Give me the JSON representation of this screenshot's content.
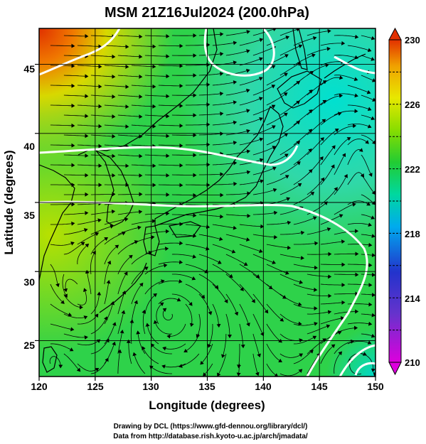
{
  "title": "MSM 21Z16Jul2024 (200.0hPa)",
  "axes": {
    "xlabel": "Longitude (degrees)",
    "ylabel": "Latitude  (degrees)",
    "x_ticks": [
      "120",
      "125",
      "130",
      "135",
      "140",
      "145",
      "150"
    ],
    "y_ticks": [
      "25",
      "30",
      "35",
      "40",
      "45"
    ]
  },
  "map": {
    "lon_range": [
      120,
      150
    ],
    "lat_range": [
      22.4,
      47.6
    ],
    "grid_lines": true,
    "field": "temperature (color), wind streamlines (arrows)",
    "contour_color": "#ffffff",
    "low_center_label": "circulation near 131.5E, 27.5N"
  },
  "colorbar": {
    "min": 210,
    "max": 230,
    "tick_labels": [
      "230",
      "226",
      "222",
      "218",
      "214",
      "210"
    ],
    "colors": [
      "#dd00dd",
      "#2233cc",
      "#00aaee",
      "#00d8a0",
      "#22cc33",
      "#88dd00",
      "#e8e800",
      "#f0a000",
      "#e23000"
    ]
  },
  "footer": {
    "line1": "Drawing by DCL (https://www.gfd-dennou.org/library/dcl/)",
    "line2": "Data from http://database.rish.kyoto-u.ac.jp/arch/jmadata/"
  }
}
